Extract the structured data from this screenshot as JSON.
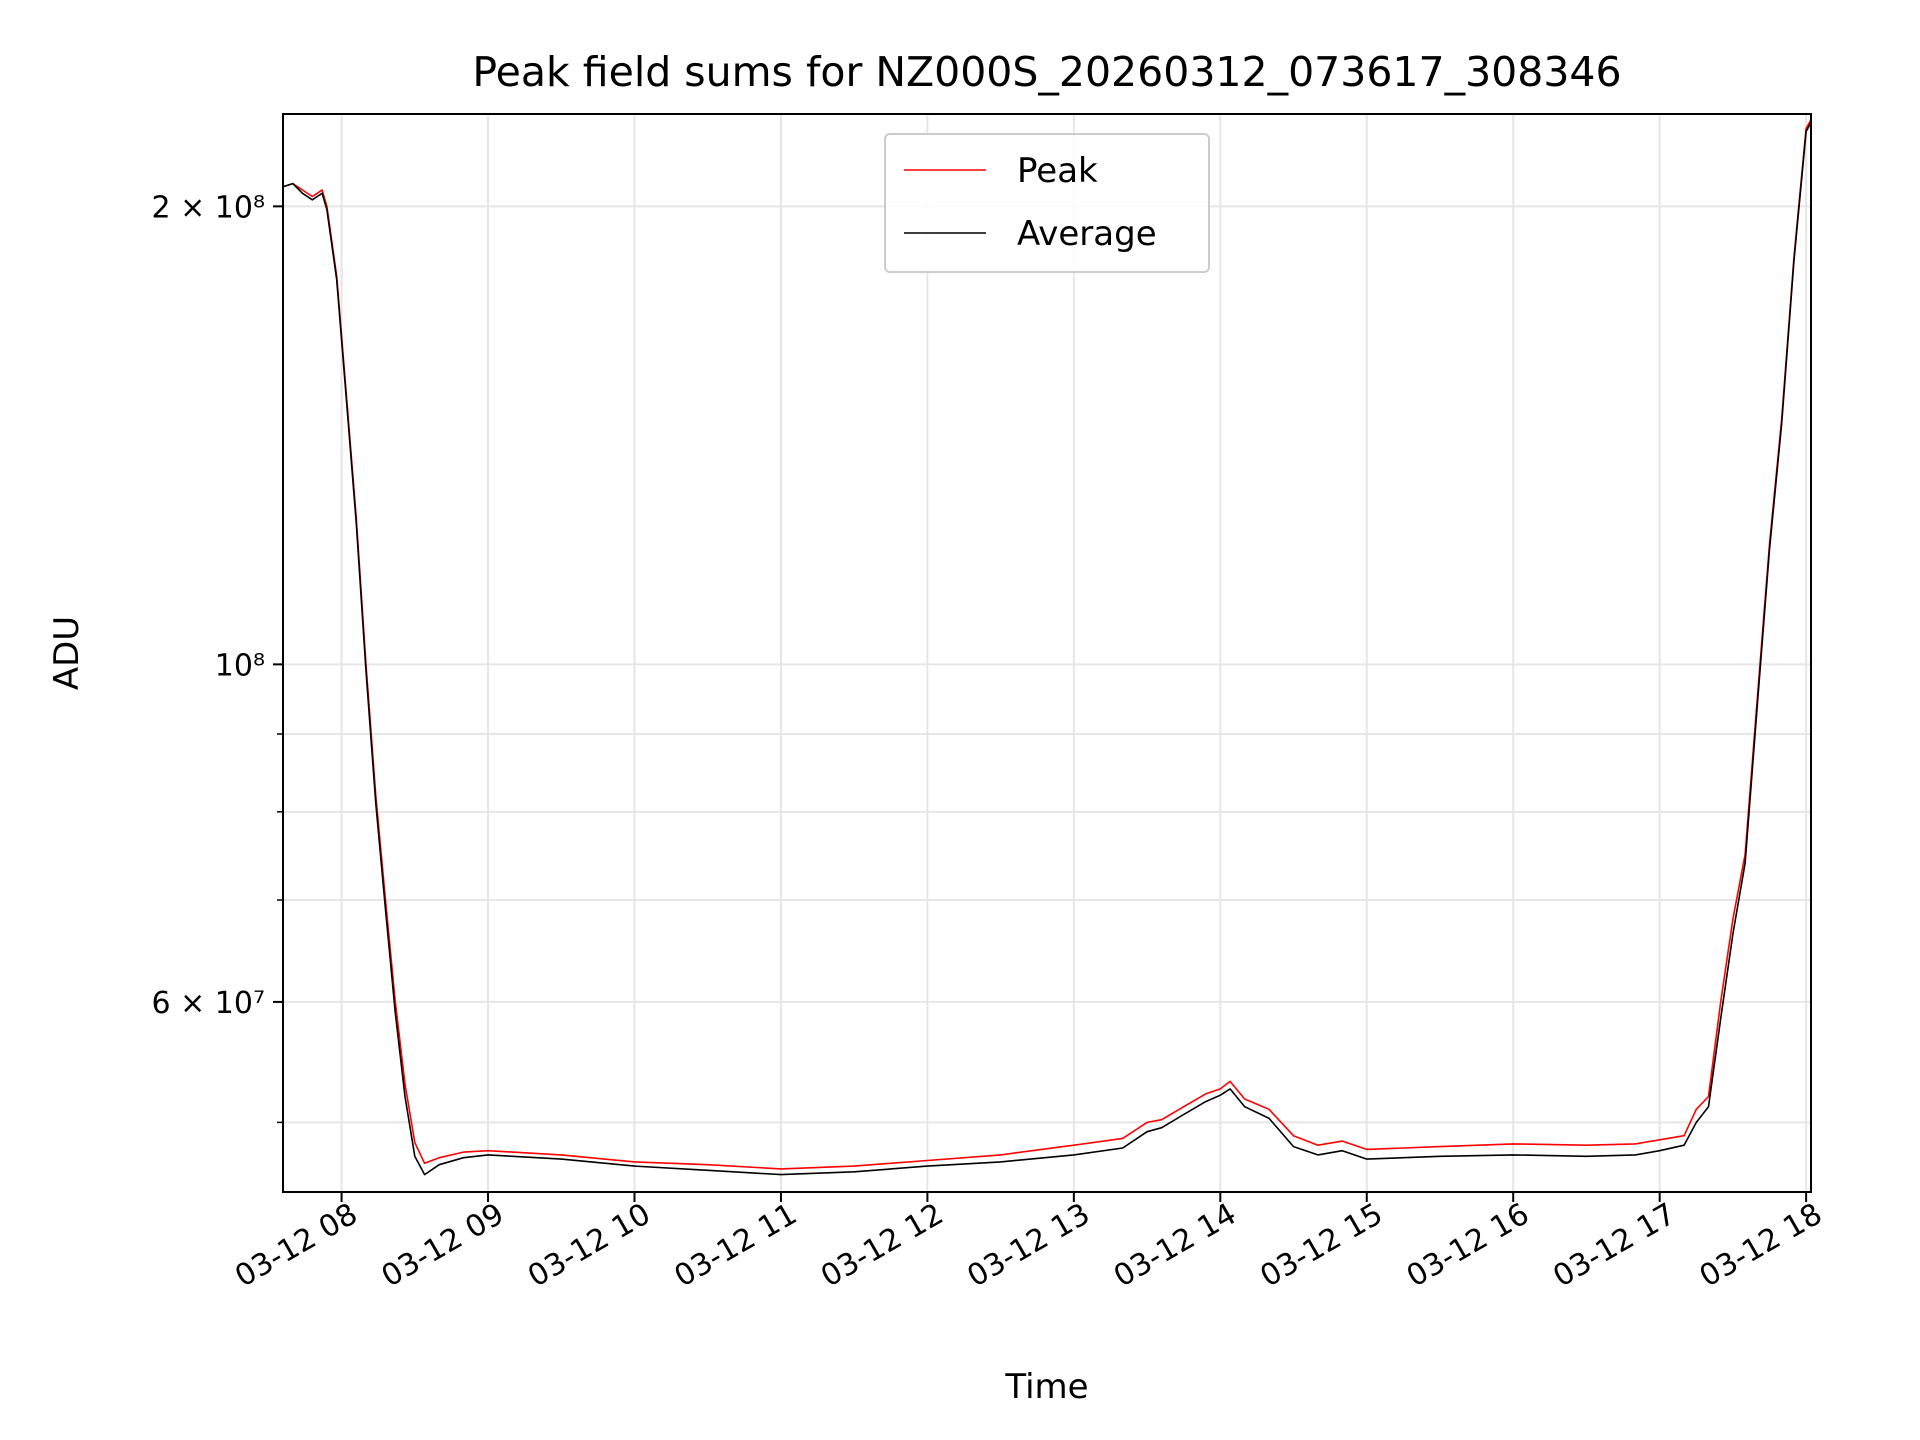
{
  "chart_data": {
    "type": "line",
    "title": "Peak field sums for NZ000S_20260312_073617_308346",
    "xlabel": "Time",
    "ylabel": "ADU",
    "y_scale": "log",
    "grid": true,
    "legend_position": "upper center",
    "xlim": [
      "03-12 07:36",
      "03-12 18:02"
    ],
    "ylim": [
      45000000,
      230000000
    ],
    "x_ticks": [
      "03-12 08",
      "03-12 09",
      "03-12 10",
      "03-12 11",
      "03-12 12",
      "03-12 13",
      "03-12 14",
      "03-12 15",
      "03-12 16",
      "03-12 17",
      "03-12 18"
    ],
    "y_ticks": [
      {
        "value": 200000000,
        "label": "2 × 10⁸"
      },
      {
        "value": 100000000,
        "label": "10⁸"
      },
      {
        "value": 60000000,
        "label": "6 × 10⁷"
      }
    ],
    "series": [
      {
        "name": "Peak",
        "color": "#ff0000",
        "x": [
          "03-12 07:36",
          "03-12 07:40",
          "03-12 07:44",
          "03-12 07:48",
          "03-12 07:50",
          "03-12 07:52",
          "03-12 07:54",
          "03-12 07:58",
          "03-12 08:02",
          "03-12 08:06",
          "03-12 08:10",
          "03-12 08:14",
          "03-12 08:18",
          "03-12 08:22",
          "03-12 08:26",
          "03-12 08:30",
          "03-12 08:34",
          "03-12 08:40",
          "03-12 08:50",
          "03-12 09:00",
          "03-12 09:30",
          "03-12 10:00",
          "03-12 10:30",
          "03-12 11:00",
          "03-12 11:30",
          "03-12 12:00",
          "03-12 12:30",
          "03-12 13:00",
          "03-12 13:20",
          "03-12 13:30",
          "03-12 13:36",
          "03-12 13:45",
          "03-12 13:54",
          "03-12 14:00",
          "03-12 14:04",
          "03-12 14:10",
          "03-12 14:20",
          "03-12 14:30",
          "03-12 14:40",
          "03-12 14:50",
          "03-12 15:00",
          "03-12 15:30",
          "03-12 16:00",
          "03-12 16:30",
          "03-12 16:50",
          "03-12 17:00",
          "03-12 17:10",
          "03-12 17:15",
          "03-12 17:20",
          "03-12 17:25",
          "03-12 17:30",
          "03-12 17:35",
          "03-12 17:40",
          "03-12 17:45",
          "03-12 17:50",
          "03-12 17:55",
          "03-12 18:00",
          "03-12 18:02"
        ],
        "values": [
          206000000,
          207000000,
          205000000,
          203000000,
          204000000,
          205000000,
          200000000,
          180000000,
          150000000,
          125000000,
          100000000,
          82000000,
          70000000,
          60000000,
          53000000,
          48500000,
          47000000,
          47400000,
          47800000,
          47900000,
          47600000,
          47100000,
          46900000,
          46600000,
          46800000,
          47200000,
          47600000,
          48300000,
          48800000,
          50000000,
          50200000,
          51200000,
          52200000,
          52600000,
          53200000,
          51800000,
          51000000,
          49000000,
          48300000,
          48600000,
          48000000,
          48200000,
          48400000,
          48300000,
          48400000,
          48700000,
          49000000,
          51000000,
          52000000,
          60000000,
          68000000,
          75000000,
          95000000,
          120000000,
          145000000,
          185000000,
          225000000,
          228000000
        ]
      },
      {
        "name": "Average",
        "color": "#000000",
        "x": [
          "03-12 07:36",
          "03-12 07:40",
          "03-12 07:44",
          "03-12 07:48",
          "03-12 07:50",
          "03-12 07:52",
          "03-12 07:54",
          "03-12 07:58",
          "03-12 08:02",
          "03-12 08:06",
          "03-12 08:10",
          "03-12 08:14",
          "03-12 08:18",
          "03-12 08:22",
          "03-12 08:26",
          "03-12 08:30",
          "03-12 08:34",
          "03-12 08:40",
          "03-12 08:50",
          "03-12 09:00",
          "03-12 09:30",
          "03-12 10:00",
          "03-12 10:30",
          "03-12 11:00",
          "03-12 11:30",
          "03-12 12:00",
          "03-12 12:30",
          "03-12 13:00",
          "03-12 13:20",
          "03-12 13:30",
          "03-12 13:36",
          "03-12 13:45",
          "03-12 13:54",
          "03-12 14:00",
          "03-12 14:04",
          "03-12 14:10",
          "03-12 14:20",
          "03-12 14:30",
          "03-12 14:40",
          "03-12 14:50",
          "03-12 15:00",
          "03-12 15:30",
          "03-12 16:00",
          "03-12 16:30",
          "03-12 16:50",
          "03-12 17:00",
          "03-12 17:10",
          "03-12 17:15",
          "03-12 17:20",
          "03-12 17:25",
          "03-12 17:30",
          "03-12 17:35",
          "03-12 17:40",
          "03-12 17:45",
          "03-12 17:50",
          "03-12 17:55",
          "03-12 18:00",
          "03-12 18:02"
        ],
        "values": [
          206000000,
          207000000,
          204000000,
          202000000,
          203000000,
          204000000,
          199000000,
          179000000,
          149000000,
          124000000,
          99000000,
          81000000,
          69000000,
          59000000,
          52000000,
          47500000,
          46200000,
          46900000,
          47400000,
          47600000,
          47300000,
          46800000,
          46500000,
          46200000,
          46400000,
          46800000,
          47100000,
          47600000,
          48100000,
          49300000,
          49600000,
          50600000,
          51600000,
          52100000,
          52600000,
          51200000,
          50300000,
          48200000,
          47600000,
          47900000,
          47300000,
          47500000,
          47600000,
          47500000,
          47600000,
          47900000,
          48300000,
          50000000,
          51200000,
          58500000,
          66500000,
          74000000,
          94000000,
          119000000,
          144000000,
          184000000,
          224000000,
          227000000
        ]
      }
    ]
  }
}
